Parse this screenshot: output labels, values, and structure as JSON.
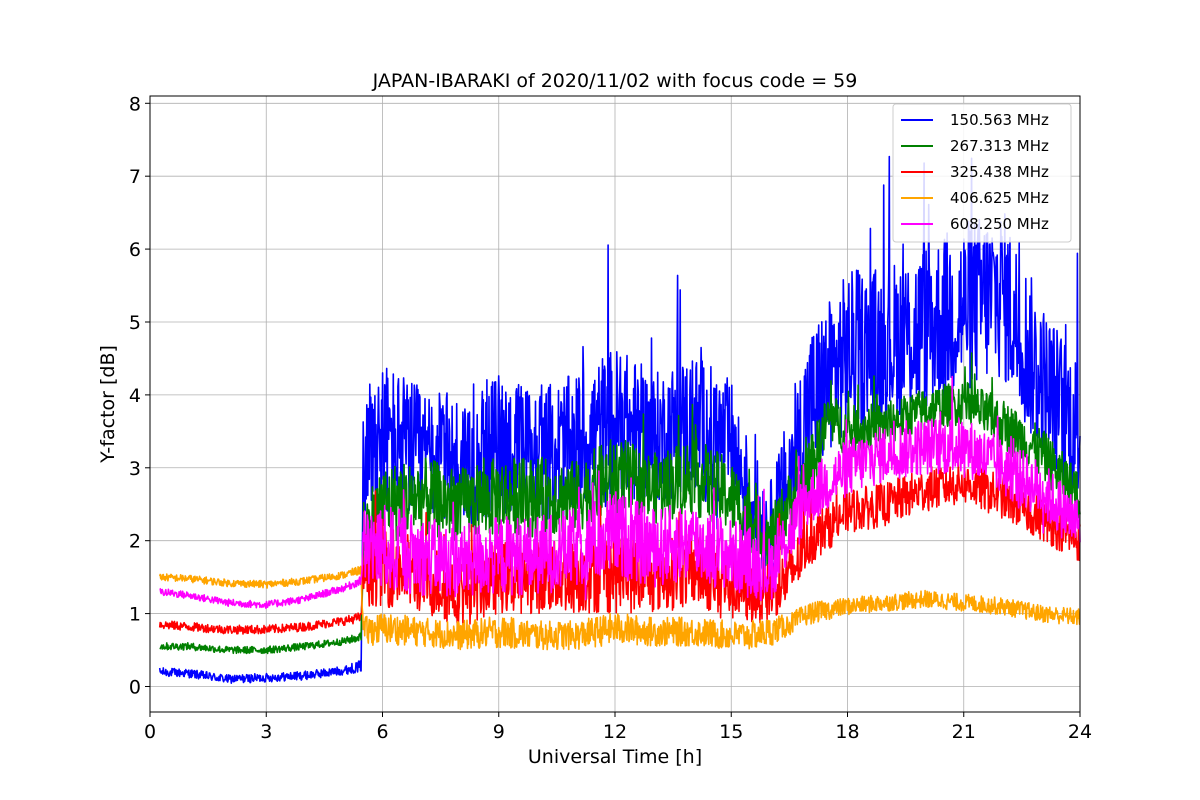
{
  "chart_data": {
    "type": "line",
    "title": "JAPAN-IBARAKI of 2020/11/02 with focus code = 59",
    "xlabel": "Universal Time [h]",
    "ylabel": "Y-factor [dB]",
    "xlim": [
      0,
      24
    ],
    "ylim": [
      -0.35,
      8.1
    ],
    "xticks": [
      0,
      3,
      6,
      9,
      12,
      15,
      18,
      21,
      24
    ],
    "yticks": [
      0,
      1,
      2,
      3,
      4,
      5,
      6,
      7,
      8
    ],
    "grid": true,
    "legend_position": "top-right",
    "series": [
      {
        "name": "150.563 MHz",
        "color": "#0000ff",
        "x": [
          0.25,
          1,
          2,
          3,
          4,
          5,
          5.45,
          5.5,
          6,
          7,
          8,
          9,
          10,
          11,
          12,
          13,
          14,
          15,
          15.5,
          16,
          16.5,
          17,
          18,
          19,
          20,
          21,
          22,
          23,
          24
        ],
        "y": [
          0.2,
          0.18,
          0.1,
          0.12,
          0.15,
          0.22,
          0.28,
          3.3,
          3.4,
          3.2,
          3.1,
          3.3,
          3.2,
          3.3,
          3.6,
          3.4,
          3.6,
          3.3,
          2.5,
          2.1,
          2.9,
          3.8,
          4.6,
          4.7,
          4.9,
          5.2,
          5.4,
          4.2,
          3.5
        ],
        "amp": [
          0.06,
          0.06,
          0.06,
          0.06,
          0.06,
          0.06,
          0.08,
          0.9,
          1.1,
          0.9,
          0.9,
          1.0,
          0.9,
          1.0,
          1.1,
          0.9,
          1.0,
          0.9,
          0.8,
          0.7,
          0.9,
          1.1,
          1.1,
          1.1,
          1.2,
          1.2,
          1.2,
          1.1,
          1.0
        ]
      },
      {
        "name": "267.313 MHz",
        "color": "#008000",
        "x": [
          0.25,
          1,
          2,
          3,
          4,
          5,
          5.45,
          5.5,
          6,
          7,
          8,
          9,
          10,
          11,
          12,
          13,
          14,
          15,
          15.5,
          16,
          16.5,
          17,
          17.5,
          18,
          19,
          20,
          21,
          22,
          23,
          24
        ],
        "y": [
          0.55,
          0.55,
          0.5,
          0.5,
          0.55,
          0.62,
          0.68,
          2.1,
          2.5,
          2.6,
          2.5,
          2.6,
          2.6,
          2.6,
          2.9,
          2.7,
          2.9,
          2.6,
          2.3,
          2.0,
          2.5,
          2.9,
          3.7,
          3.5,
          3.6,
          3.8,
          3.9,
          3.6,
          3.2,
          2.6
        ],
        "amp": [
          0.05,
          0.05,
          0.05,
          0.05,
          0.05,
          0.05,
          0.06,
          0.5,
          0.55,
          0.55,
          0.5,
          0.55,
          0.55,
          0.5,
          0.55,
          0.5,
          0.55,
          0.5,
          0.45,
          0.4,
          0.45,
          0.45,
          0.35,
          0.35,
          0.3,
          0.3,
          0.3,
          0.35,
          0.35,
          0.35
        ]
      },
      {
        "name": "325.438 MHz",
        "color": "#ff0000",
        "x": [
          0.25,
          1,
          2,
          3,
          4,
          5,
          5.45,
          5.5,
          6,
          7,
          8,
          9,
          10,
          11,
          12,
          13,
          14,
          15,
          15.5,
          16,
          16.5,
          17,
          18,
          19,
          20,
          21,
          22,
          23,
          24
        ],
        "y": [
          0.85,
          0.82,
          0.78,
          0.78,
          0.82,
          0.9,
          0.95,
          1.6,
          1.7,
          1.5,
          1.3,
          1.5,
          1.5,
          1.5,
          1.6,
          1.5,
          1.6,
          1.4,
          1.3,
          1.3,
          1.5,
          2.0,
          2.4,
          2.5,
          2.7,
          2.8,
          2.6,
          2.3,
          2.0
        ],
        "amp": [
          0.06,
          0.06,
          0.06,
          0.06,
          0.06,
          0.06,
          0.07,
          0.5,
          0.6,
          0.5,
          0.5,
          0.5,
          0.5,
          0.5,
          0.6,
          0.5,
          0.5,
          0.5,
          0.45,
          0.4,
          0.4,
          0.35,
          0.3,
          0.3,
          0.3,
          0.3,
          0.3,
          0.3,
          0.3
        ]
      },
      {
        "name": "406.625 MHz",
        "color": "#ffa500",
        "x": [
          0.25,
          1,
          2,
          3,
          4,
          5,
          5.45,
          5.5,
          6,
          7,
          8,
          9,
          10,
          11,
          12,
          13,
          14,
          15,
          15.5,
          16,
          16.5,
          17,
          18,
          19,
          20,
          21,
          22,
          23,
          24
        ],
        "y": [
          1.5,
          1.48,
          1.42,
          1.4,
          1.45,
          1.53,
          1.6,
          0.75,
          0.8,
          0.75,
          0.7,
          0.75,
          0.7,
          0.7,
          0.8,
          0.75,
          0.75,
          0.7,
          0.7,
          0.75,
          0.85,
          1.0,
          1.1,
          1.15,
          1.2,
          1.15,
          1.1,
          1.0,
          0.95
        ],
        "amp": [
          0.05,
          0.05,
          0.05,
          0.05,
          0.05,
          0.05,
          0.06,
          0.2,
          0.22,
          0.2,
          0.2,
          0.22,
          0.2,
          0.2,
          0.22,
          0.2,
          0.2,
          0.2,
          0.2,
          0.2,
          0.15,
          0.15,
          0.12,
          0.12,
          0.12,
          0.12,
          0.12,
          0.12,
          0.12
        ]
      },
      {
        "name": "608.250 MHz",
        "color": "#ff00ff",
        "x": [
          0.25,
          1,
          2,
          3,
          4,
          5,
          5.45,
          5.5,
          6,
          7,
          8,
          9,
          10,
          11,
          12,
          13,
          14,
          15,
          15.5,
          16,
          16.5,
          17,
          18,
          19,
          20,
          21,
          22,
          23,
          24
        ],
        "y": [
          1.3,
          1.25,
          1.15,
          1.12,
          1.2,
          1.35,
          1.45,
          1.9,
          1.9,
          1.8,
          1.7,
          1.8,
          1.8,
          1.9,
          2.1,
          1.9,
          2.0,
          1.8,
          1.7,
          1.6,
          2.1,
          2.6,
          3.0,
          3.2,
          3.3,
          3.3,
          3.0,
          2.7,
          2.2
        ],
        "amp": [
          0.05,
          0.05,
          0.05,
          0.05,
          0.05,
          0.05,
          0.06,
          0.55,
          0.6,
          0.55,
          0.5,
          0.55,
          0.55,
          0.55,
          0.6,
          0.55,
          0.55,
          0.5,
          0.5,
          0.45,
          0.45,
          0.4,
          0.4,
          0.4,
          0.4,
          0.4,
          0.4,
          0.4,
          0.4
        ]
      }
    ]
  }
}
